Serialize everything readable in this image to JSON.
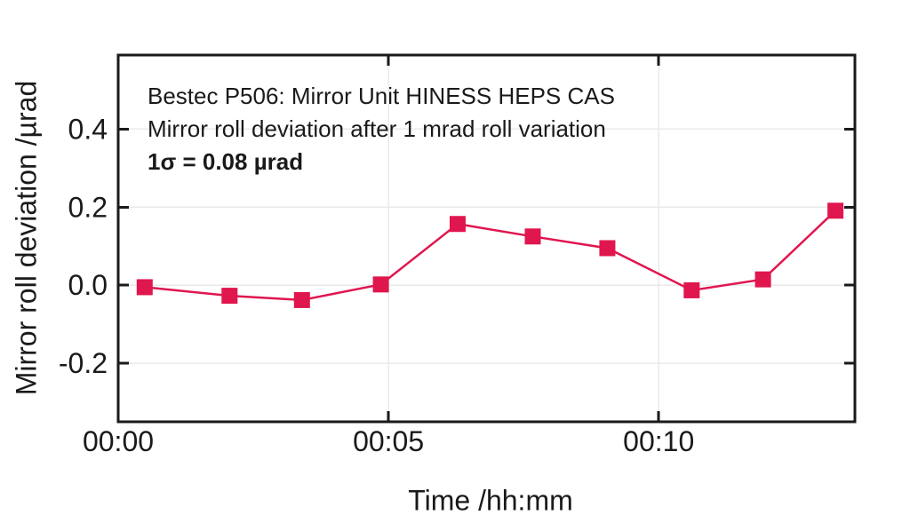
{
  "page": {
    "background": "#ffffff"
  },
  "chart_data": {
    "type": "line",
    "annotation_lines": [
      "Bestec P506: Mirror Unit HINESS HEPS CAS",
      "Mirror roll deviation after 1 mrad roll variation",
      "1σ = 0.08 µrad"
    ],
    "xlabel": "Time /hh:mm",
    "ylabel": "Mirror roll deviation /µrad",
    "xlim": [
      0,
      13.63
    ],
    "ylim": [
      -0.35,
      0.59
    ],
    "x_ticks": [
      {
        "t": 0,
        "label": "00:00"
      },
      {
        "t": 5,
        "label": "00:05"
      },
      {
        "t": 10,
        "label": "00:10"
      }
    ],
    "y_ticks": [
      {
        "v": 0.4,
        "label": "0.4"
      },
      {
        "v": 0.2,
        "label": "0.2"
      },
      {
        "v": 0.0,
        "label": "0.0"
      },
      {
        "v": -0.2,
        "label": "-0.2"
      }
    ],
    "grid": true,
    "legend_position": "none",
    "series": [
      {
        "name": "mirror roll deviation",
        "marker": "square",
        "x_minutes": [
          0.49,
          2.06,
          3.4,
          4.86,
          6.28,
          7.67,
          9.05,
          10.61,
          11.93,
          13.27
        ],
        "y_urad": [
          -0.005,
          -0.027,
          -0.038,
          0.002,
          0.157,
          0.125,
          0.095,
          -0.013,
          0.015,
          0.191
        ]
      }
    ],
    "colors": {
      "series": "#e0164e",
      "grid": "#eaeaea",
      "frame": "#1a1a1a",
      "text": "#1a1a1a"
    }
  }
}
